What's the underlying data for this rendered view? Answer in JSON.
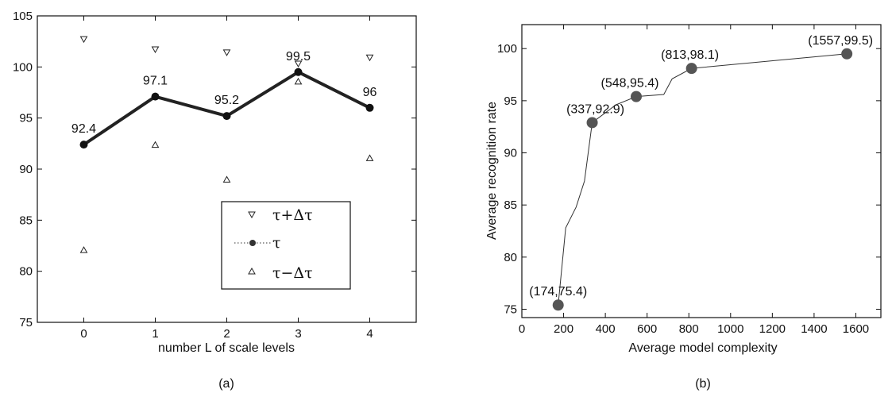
{
  "chart_data": [
    {
      "type": "line",
      "caption": "(a)",
      "xlabel": "number L of scale levels",
      "ylabel": "",
      "xlim": [
        -0.65,
        4.65
      ],
      "ylim": [
        75,
        105
      ],
      "xticks": [
        0,
        1,
        2,
        3,
        4
      ],
      "yticks": [
        75,
        80,
        85,
        90,
        95,
        100,
        105
      ],
      "grid": false,
      "legend_position": "bottom-right",
      "series": [
        {
          "name": "τ+Δτ",
          "marker": "triangle-down",
          "line": "none",
          "x": [
            0,
            1,
            2,
            3,
            4
          ],
          "values": [
            102.7,
            101.7,
            101.4,
            100.3,
            100.9
          ]
        },
        {
          "name": "τ",
          "marker": "circle",
          "line": "solid-thick",
          "x": [
            0,
            1,
            2,
            3,
            4
          ],
          "values": [
            92.4,
            97.1,
            95.2,
            99.5,
            96
          ],
          "data_labels": [
            "92.4",
            "97.1",
            "95.2",
            "99.5",
            "96"
          ]
        },
        {
          "name": "τ−Δτ",
          "marker": "triangle-up",
          "line": "none",
          "x": [
            0,
            1,
            2,
            3,
            4
          ],
          "values": [
            82.1,
            92.4,
            89.0,
            98.6,
            91.1
          ]
        }
      ]
    },
    {
      "type": "line",
      "caption": "(b)",
      "xlabel": "Average model complexity",
      "ylabel": "Average recognition rate",
      "xlim": [
        0,
        1720
      ],
      "ylim": [
        74.2,
        102.3
      ],
      "xticks": [
        0,
        200,
        400,
        600,
        800,
        1000,
        1200,
        1400,
        1600
      ],
      "yticks": [
        75,
        80,
        85,
        90,
        95,
        100
      ],
      "grid": false,
      "series": [
        {
          "name": "",
          "marker": "none",
          "line": "thin",
          "x": [
            174,
            210,
            260,
            300,
            337,
            450,
            548,
            680,
            720,
            813,
            1557
          ],
          "values": [
            75.4,
            82.8,
            84.8,
            87.3,
            92.9,
            94.6,
            95.4,
            95.6,
            97.1,
            98.1,
            99.5
          ]
        },
        {
          "name": "",
          "marker": "circle",
          "line": "none",
          "x": [
            174,
            337,
            548,
            813,
            1557
          ],
          "values": [
            75.4,
            92.9,
            95.4,
            98.1,
            99.5
          ],
          "data_labels": [
            "(174,75.4)",
            "(337,92.9)",
            "(548,95.4)",
            "(813,98.1)",
            "(1557,99.5)"
          ]
        }
      ]
    }
  ]
}
